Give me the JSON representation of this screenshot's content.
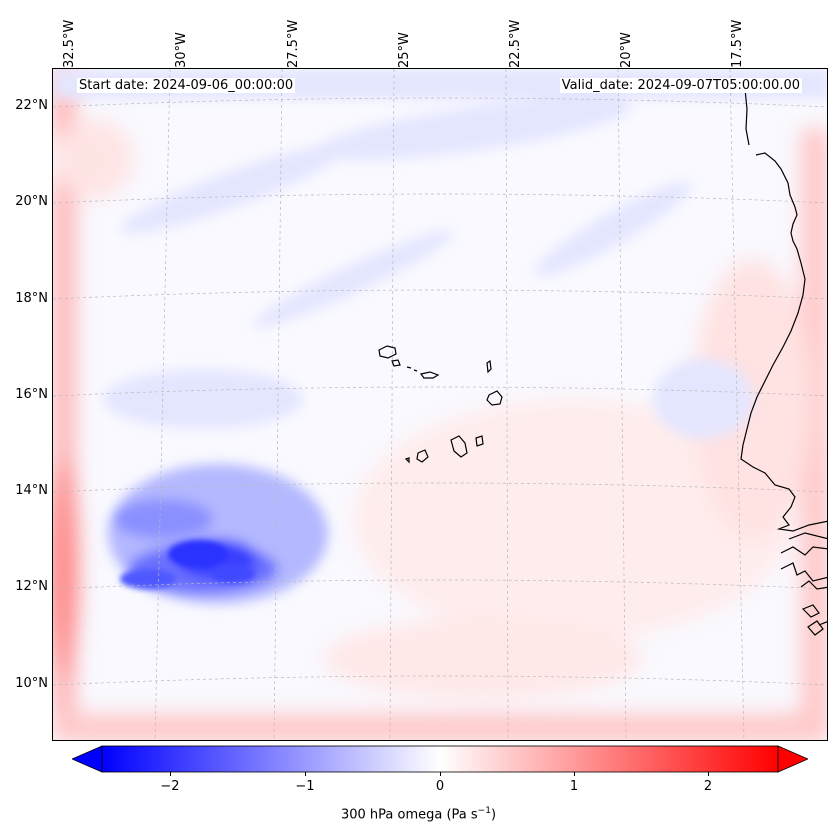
{
  "map": {
    "title_left": "Start date: 2024-09-06_00:00:00",
    "title_right": "Valid_date: 2024-09-07T05:00:00.00",
    "projection": "Lambert conformal (regional)",
    "variable": "300 hPa omega",
    "units": "Pa s",
    "units_exponent": "−1",
    "lon_labels": [
      "32.5°W",
      "30°W",
      "27.5°W",
      "25°W",
      "22.5°W",
      "20°W",
      "17.5°W"
    ],
    "lat_labels": [
      "22°N",
      "20°N",
      "18°N",
      "16°N",
      "14°N",
      "12°N",
      "10°N"
    ],
    "features": [
      "Cabo Verde islands",
      "West African coastline (Senegal / Gambia / Guinea-Bissau)"
    ],
    "colors": {
      "negative": "#0000ff",
      "neutral": "#ffffff",
      "positive": "#ff0000",
      "coast": "#000000",
      "grid": "#b0b0b0"
    }
  },
  "colorbar": {
    "ticks": [
      "−2",
      "−1",
      "0",
      "1",
      "2"
    ],
    "range": [
      -2.75,
      2.75
    ],
    "label": "300 hPa omega (Pa s",
    "label_close": ")",
    "label_exponent": "−1"
  }
}
